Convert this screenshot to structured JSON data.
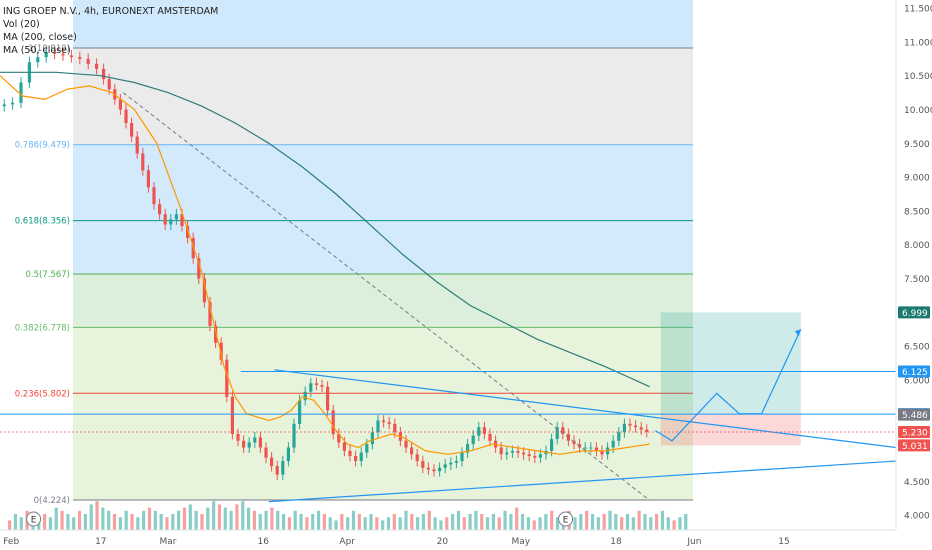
{
  "header": {
    "title": "ING GROEP N.V., 4h, EURONEXT AMSTERDAM",
    "indicators": [
      "Vol (20)",
      "MA (200, close)",
      "MA (50, close)"
    ]
  },
  "chart_data": {
    "type": "candlestick",
    "symbol": "ING GROEP N.V.",
    "interval": "4h",
    "exchange": "EURONEXT AMSTERDAM",
    "y_axis": {
      "range": [
        3.78,
        11.62
      ],
      "ticks": [
        "11.500",
        "11.000",
        "10.500",
        "10.000",
        "9.500",
        "9.000",
        "8.500",
        "8.000",
        "7.500",
        "7.000",
        "6.500",
        "6.000",
        "5.500",
        "5.000",
        "4.500",
        "4.000"
      ]
    },
    "x_axis": {
      "ticks": [
        "Feb",
        "17",
        "Mar",
        "16",
        "Apr",
        "20",
        "May",
        "18",
        "Jun",
        "15"
      ],
      "tick_values": [
        2,
        18,
        30,
        47,
        62,
        79,
        93,
        110,
        124,
        140
      ]
    },
    "fibonacci_levels": [
      {
        "label": "1(10.910)",
        "level": 1,
        "price": 10.91
      },
      {
        "label": "0.786(9.479)",
        "level": 0.786,
        "price": 9.479
      },
      {
        "label": "0.618(8.356)",
        "level": 0.618,
        "price": 8.356
      },
      {
        "label": "0.5(7.567)",
        "level": 0.5,
        "price": 7.567
      },
      {
        "label": "0.382(6.778)",
        "level": 0.382,
        "price": 6.778
      },
      {
        "label": "0.236(5.802)",
        "level": 0.236,
        "price": 5.802
      },
      {
        "label": "0(4.224)",
        "level": 0,
        "price": 4.224
      }
    ],
    "price_labels": [
      {
        "value": "6.999",
        "color": "#1b7a6e"
      },
      {
        "value": "6.125",
        "color": "#2196f3"
      },
      {
        "value": "5.495",
        "color": "#2196f3"
      },
      {
        "value": "5.486",
        "color": "#787b86"
      },
      {
        "value": "5.230",
        "color": "#ef5350"
      },
      {
        "value": "5.031",
        "color": "#ef5350"
      }
    ],
    "event_markers": [
      {
        "label": "E",
        "x": 6
      },
      {
        "label": "E",
        "x": 101
      }
    ],
    "price_path": [
      [
        0,
        10.05
      ],
      [
        3,
        10.1
      ],
      [
        6,
        10.7
      ],
      [
        9,
        10.85
      ],
      [
        12,
        10.8
      ],
      [
        15,
        10.75
      ],
      [
        18,
        10.6
      ],
      [
        20,
        10.3
      ],
      [
        22,
        10.0
      ],
      [
        24,
        9.6
      ],
      [
        26,
        9.1
      ],
      [
        28,
        8.6
      ],
      [
        30,
        8.3
      ],
      [
        32,
        8.45
      ],
      [
        34,
        8.1
      ],
      [
        36,
        7.5
      ],
      [
        38,
        6.8
      ],
      [
        40,
        6.3
      ],
      [
        42,
        5.2
      ],
      [
        44,
        5.0
      ],
      [
        46,
        5.15
      ],
      [
        48,
        4.85
      ],
      [
        50,
        4.6
      ],
      [
        52,
        5.0
      ],
      [
        54,
        5.7
      ],
      [
        56,
        5.95
      ],
      [
        58,
        5.9
      ],
      [
        60,
        5.2
      ],
      [
        62,
        4.95
      ],
      [
        64,
        4.8
      ],
      [
        66,
        5.05
      ],
      [
        68,
        5.4
      ],
      [
        70,
        5.35
      ],
      [
        72,
        5.1
      ],
      [
        74,
        4.9
      ],
      [
        76,
        4.7
      ],
      [
        78,
        4.65
      ],
      [
        80,
        4.75
      ],
      [
        82,
        4.8
      ],
      [
        84,
        5.05
      ],
      [
        86,
        5.3
      ],
      [
        88,
        5.1
      ],
      [
        90,
        4.9
      ],
      [
        92,
        4.95
      ],
      [
        94,
        4.9
      ],
      [
        96,
        4.85
      ],
      [
        98,
        4.95
      ],
      [
        100,
        5.3
      ],
      [
        102,
        5.1
      ],
      [
        104,
        5.0
      ],
      [
        106,
        5.0
      ],
      [
        108,
        4.9
      ],
      [
        110,
        5.1
      ],
      [
        112,
        5.35
      ],
      [
        114,
        5.3
      ],
      [
        116,
        5.23
      ]
    ],
    "ma50": [
      [
        0,
        10.5
      ],
      [
        4,
        10.2
      ],
      [
        8,
        10.15
      ],
      [
        12,
        10.3
      ],
      [
        16,
        10.35
      ],
      [
        20,
        10.25
      ],
      [
        24,
        10.0
      ],
      [
        28,
        9.5
      ],
      [
        32,
        8.6
      ],
      [
        36,
        7.6
      ],
      [
        38,
        6.9
      ],
      [
        40,
        6.2
      ],
      [
        42,
        5.75
      ],
      [
        44,
        5.5
      ],
      [
        46,
        5.45
      ],
      [
        48,
        5.4
      ],
      [
        50,
        5.45
      ],
      [
        52,
        5.55
      ],
      [
        54,
        5.75
      ],
      [
        56,
        5.7
      ],
      [
        58,
        5.5
      ],
      [
        60,
        5.25
      ],
      [
        62,
        5.05
      ],
      [
        64,
        5.0
      ],
      [
        66,
        5.1
      ],
      [
        68,
        5.15
      ],
      [
        70,
        5.2
      ],
      [
        72,
        5.15
      ],
      [
        74,
        5.05
      ],
      [
        76,
        4.95
      ],
      [
        80,
        4.9
      ],
      [
        84,
        4.95
      ],
      [
        88,
        5.05
      ],
      [
        92,
        5.0
      ],
      [
        96,
        4.95
      ],
      [
        100,
        4.9
      ],
      [
        104,
        4.95
      ],
      [
        108,
        4.95
      ],
      [
        112,
        5.0
      ],
      [
        116,
        5.05
      ]
    ],
    "ma200": [
      [
        0,
        10.55
      ],
      [
        10,
        10.55
      ],
      [
        18,
        10.5
      ],
      [
        24,
        10.4
      ],
      [
        30,
        10.25
      ],
      [
        36,
        10.05
      ],
      [
        42,
        9.8
      ],
      [
        48,
        9.5
      ],
      [
        54,
        9.15
      ],
      [
        60,
        8.75
      ],
      [
        66,
        8.3
      ],
      [
        72,
        7.85
      ],
      [
        78,
        7.45
      ],
      [
        84,
        7.1
      ],
      [
        90,
        6.85
      ],
      [
        96,
        6.6
      ],
      [
        102,
        6.4
      ],
      [
        108,
        6.2
      ],
      [
        112,
        6.05
      ],
      [
        116,
        5.9
      ]
    ],
    "volume": [
      3,
      5,
      4,
      6,
      4,
      3,
      5,
      4,
      7,
      6,
      5,
      4,
      6,
      5,
      8,
      9,
      7,
      6,
      5,
      4,
      6,
      5,
      4,
      6,
      7,
      6,
      5,
      4,
      5,
      6,
      7,
      8,
      6,
      5,
      7,
      9,
      8,
      7,
      6,
      8,
      9,
      7,
      6,
      5,
      6,
      7,
      6,
      5,
      4,
      6,
      5,
      4,
      5,
      6,
      5,
      4,
      3,
      5,
      4,
      6,
      5,
      4,
      5,
      4,
      3,
      4,
      5,
      4,
      6,
      5,
      4,
      5,
      6,
      4,
      3,
      4,
      5,
      6,
      4,
      5,
      6,
      5,
      4,
      5,
      4,
      6,
      5,
      7,
      5,
      4,
      3,
      4,
      5,
      6,
      4,
      5,
      6,
      4,
      5,
      6,
      5,
      4,
      5,
      6,
      5,
      4,
      5,
      4,
      6,
      5,
      4,
      5,
      6,
      4,
      3,
      4,
      5
    ],
    "drawings": {
      "trendline_upper": [
        [
          49,
          6.15
        ],
        [
          160,
          5.0
        ]
      ],
      "trendline_lower": [
        [
          48,
          4.2
        ],
        [
          160,
          4.8
        ]
      ],
      "dashed_line": [
        [
          22,
          10.25
        ],
        [
          116,
          4.22
        ]
      ],
      "horizontal_6125": [
        [
          43,
          6.125
        ],
        [
          160,
          6.125
        ]
      ],
      "horizontal_5495": [
        [
          0,
          5.495
        ],
        [
          160,
          5.495
        ]
      ],
      "projection": [
        [
          117,
          5.25
        ],
        [
          120,
          5.1
        ],
        [
          128,
          5.8
        ],
        [
          132,
          5.5
        ],
        [
          136,
          5.5
        ],
        [
          143,
          6.75
        ]
      ],
      "target_box": {
        "x1": 118,
        "x2": 143,
        "top": 6.999,
        "mid": 5.486,
        "bottom": 5.031
      }
    },
    "colors": {
      "up": "#26a69a",
      "down": "#ef5350",
      "ma50": "#ff9800",
      "ma200": "#2e7d7a",
      "fib_upper": "#bbdefb",
      "fib_gray": "#e0e0e0",
      "fib_green": "#c8e6c9",
      "fib_lightgreen": "#dcedc8",
      "fib_red": "#ffcdd2",
      "trendline": "#2196f3"
    }
  }
}
